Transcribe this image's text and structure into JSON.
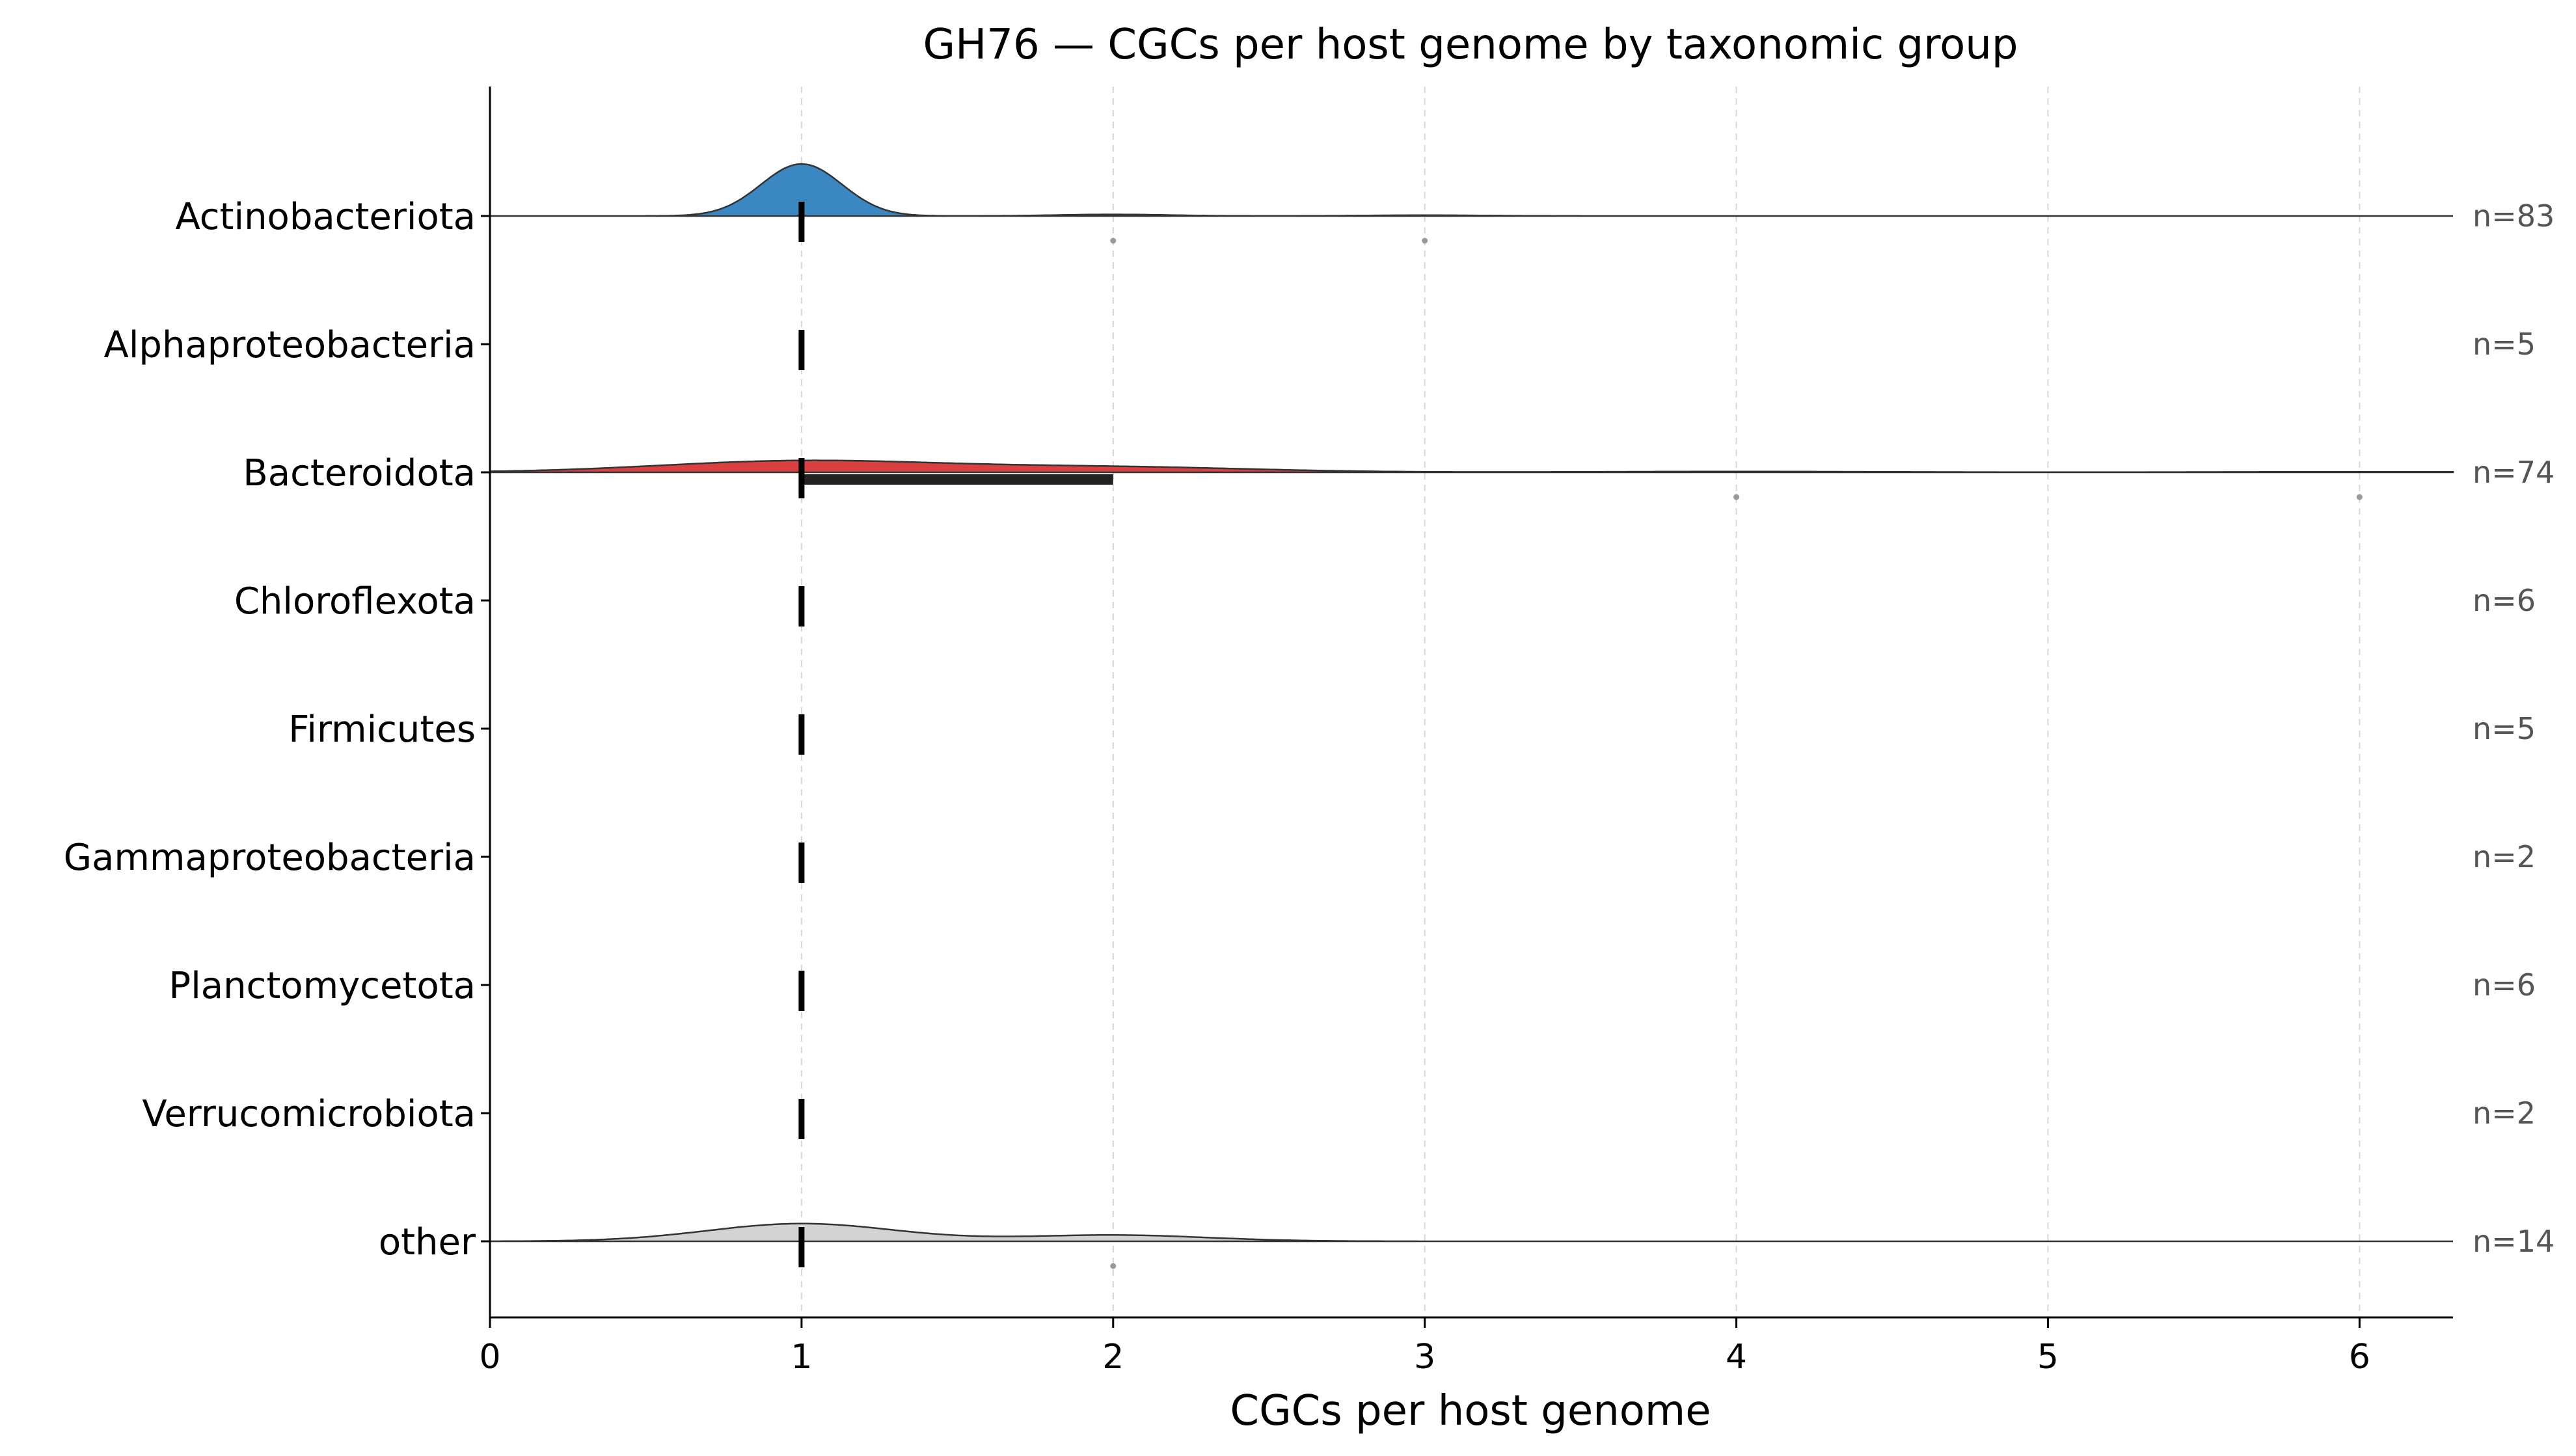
{
  "chart_data": {
    "type": "ridgeline",
    "title": "GH76 — CGCs per host genome by taxonomic group",
    "xlabel": "CGCs per host genome",
    "ylabel": "",
    "xlim": [
      0,
      6.3
    ],
    "xticks": [
      0,
      1,
      2,
      3,
      4,
      5,
      6
    ],
    "grid": "vertical dashed",
    "groups": [
      {
        "name": "Actinobacteriota",
        "n_label": "n=83",
        "color": "#3a87c1",
        "median": 1,
        "iqr": [
          1,
          1
        ],
        "density": [
          {
            "x": 1,
            "height": 1.0,
            "width": 0.13
          },
          {
            "x": 2,
            "height": 0.03,
            "width": 0.18
          },
          {
            "x": 3,
            "height": 0.015,
            "width": 0.2
          }
        ],
        "outliers": [
          2,
          3
        ]
      },
      {
        "name": "Alphaproteobacteria",
        "n_label": "n=5",
        "color": "#3a87c1",
        "median": 1,
        "iqr": [
          1,
          1
        ],
        "density": [],
        "outliers": []
      },
      {
        "name": "Bacteroidota",
        "n_label": "n=74",
        "color": "#d94040",
        "median": 1,
        "iqr": [
          1,
          2
        ],
        "density": [
          {
            "x": 1,
            "height": 0.22,
            "width": 0.45
          },
          {
            "x": 2,
            "height": 0.1,
            "width": 0.45
          },
          {
            "x": 4,
            "height": 0.015,
            "width": 0.5
          },
          {
            "x": 6,
            "height": 0.01,
            "width": 0.5
          }
        ],
        "outliers": [
          4,
          6
        ]
      },
      {
        "name": "Chloroflexota",
        "n_label": "n=6",
        "color": "#3a87c1",
        "median": 1,
        "iqr": [
          1,
          1
        ],
        "density": [],
        "outliers": []
      },
      {
        "name": "Firmicutes",
        "n_label": "n=5",
        "color": "#3a87c1",
        "median": 1,
        "iqr": [
          1,
          1
        ],
        "density": [],
        "outliers": []
      },
      {
        "name": "Gammaproteobacteria",
        "n_label": "n=2",
        "color": "#3a87c1",
        "median": 1,
        "iqr": [
          1,
          1
        ],
        "density": [],
        "outliers": []
      },
      {
        "name": "Planctomycetota",
        "n_label": "n=6",
        "color": "#3a87c1",
        "median": 1,
        "iqr": [
          1,
          1
        ],
        "density": [],
        "outliers": []
      },
      {
        "name": "Verrucomicrobiota",
        "n_label": "n=2",
        "color": "#3a87c1",
        "median": 1,
        "iqr": [
          1,
          1
        ],
        "density": [],
        "outliers": []
      },
      {
        "name": "other",
        "n_label": "n=14",
        "color": "#d3d3d3",
        "median": 1,
        "iqr": [
          1,
          1
        ],
        "density": [
          {
            "x": 1,
            "height": 0.34,
            "width": 0.3
          },
          {
            "x": 2,
            "height": 0.12,
            "width": 0.3
          }
        ],
        "outliers": [
          2
        ]
      }
    ]
  }
}
